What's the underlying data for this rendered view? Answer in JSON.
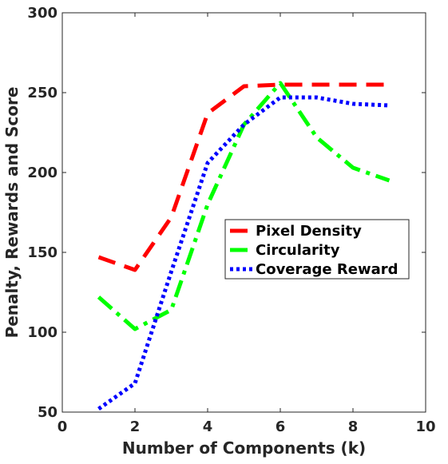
{
  "chart_data": {
    "type": "line",
    "xlabel": "Number of Components (k)",
    "ylabel": "Penalty, Rewards and Score",
    "xlim": [
      0,
      10
    ],
    "ylim": [
      50,
      300
    ],
    "xticks": [
      0,
      2,
      4,
      6,
      8,
      10
    ],
    "yticks": [
      50,
      100,
      150,
      200,
      250,
      300
    ],
    "grid": false,
    "legend_position": "center-right",
    "x": [
      1,
      2,
      3,
      4,
      5,
      6,
      7,
      8,
      9
    ],
    "series": [
      {
        "name": "Pixel Density",
        "color": "#ff0000",
        "dash": "dashed",
        "values": [
          147,
          139,
          172,
          237,
          254,
          255,
          255,
          255,
          255
        ]
      },
      {
        "name": "Circularity",
        "color": "#00ff00",
        "dash": "dashdot",
        "values": [
          122,
          102,
          114,
          180,
          230,
          256,
          222,
          203,
          195
        ]
      },
      {
        "name": "Coverage Reward",
        "color": "#0000ff",
        "dash": "dotted",
        "values": [
          52,
          68,
          138,
          206,
          230,
          247,
          247,
          243,
          242
        ]
      }
    ]
  }
}
